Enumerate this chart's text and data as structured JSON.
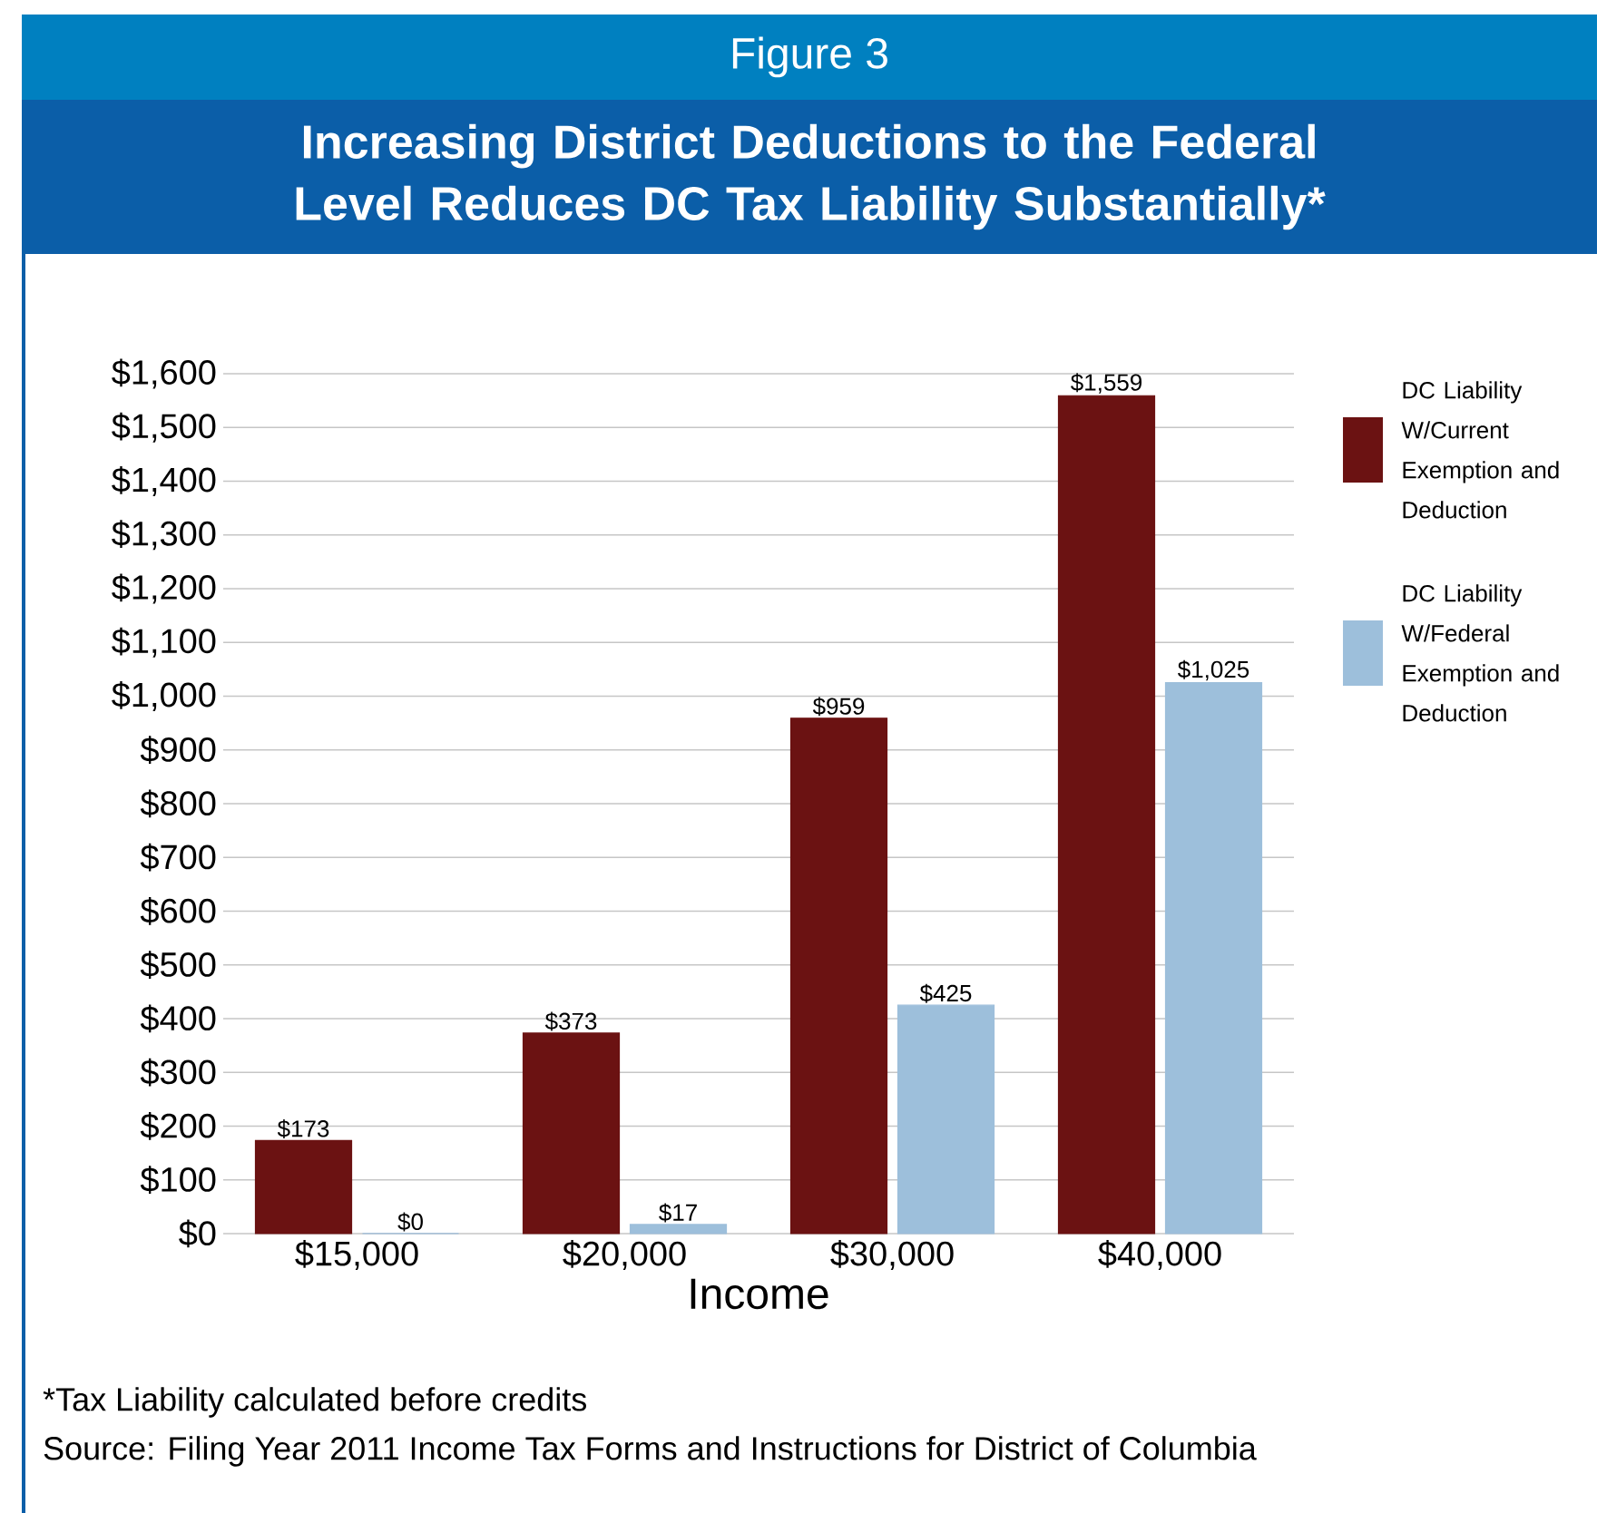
{
  "chart_data": {
    "type": "bar",
    "subtitle": "Figure 3",
    "title": "Increasing District Deductions to the Federal Level Reduces DC Tax Liability Substantially*",
    "xlabel": "Income",
    "categories": [
      "$15,000",
      "$20,000",
      "$30,000",
      "$40,000"
    ],
    "series": [
      {
        "name": "DC Liability W/Current Exemption and Deduction",
        "color": "#6b1212",
        "values": [
          173,
          373,
          959,
          1559
        ],
        "value_labels": [
          "$173",
          "$373",
          "$959",
          "$1,559"
        ]
      },
      {
        "name": "DC Liability W/Federal Exemption and Deduction",
        "color": "#9dbfdb",
        "values": [
          0,
          17,
          425,
          1025
        ],
        "value_labels": [
          "$0",
          "$17",
          "$425",
          "$1,025"
        ]
      }
    ],
    "ylim": [
      0,
      1600
    ],
    "yticks": [
      {
        "value": 0,
        "label": "$0"
      },
      {
        "value": 100,
        "label": "$100"
      },
      {
        "value": 200,
        "label": "$200"
      },
      {
        "value": 300,
        "label": "$300"
      },
      {
        "value": 400,
        "label": "$400"
      },
      {
        "value": 500,
        "label": "$500"
      },
      {
        "value": 600,
        "label": "$600"
      },
      {
        "value": 700,
        "label": "$700"
      },
      {
        "value": 800,
        "label": "$800"
      },
      {
        "value": 900,
        "label": "$900"
      },
      {
        "value": 1000,
        "label": "$1,000"
      },
      {
        "value": 1100,
        "label": "$1,100"
      },
      {
        "value": 1200,
        "label": "$1,200"
      },
      {
        "value": 1300,
        "label": "$1,300"
      },
      {
        "value": 1400,
        "label": "$1,400"
      },
      {
        "value": 1500,
        "label": "$1,500"
      },
      {
        "value": 1600,
        "label": "$1,600"
      }
    ],
    "grid": "y",
    "legend": "right",
    "annotations": [
      "*Tax Liability calculated before credits",
      "Source: Filing Year 2011 Income Tax Forms and Instructions for District of Columbia"
    ]
  }
}
